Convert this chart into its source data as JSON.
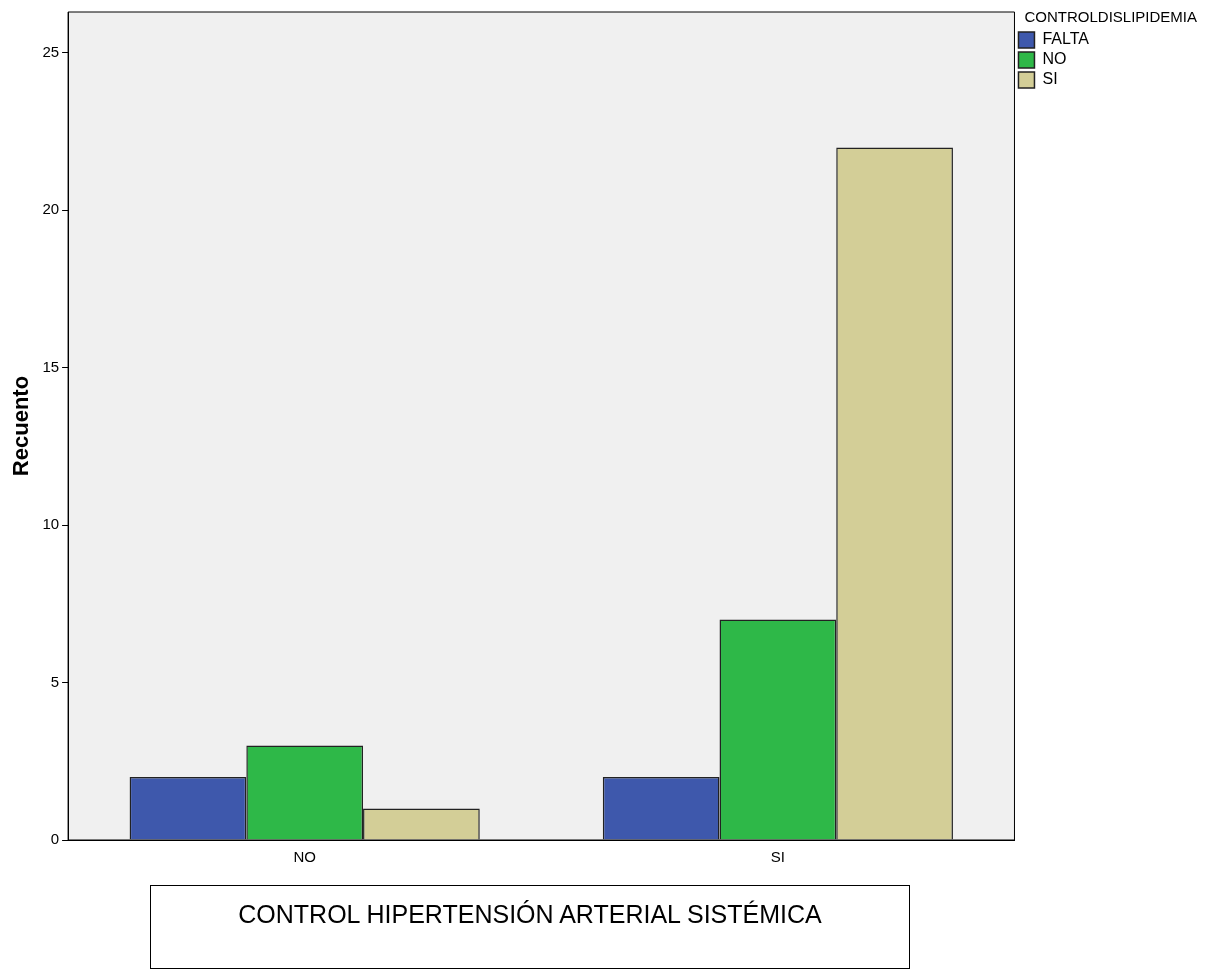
{
  "chart_data": {
    "type": "bar",
    "xlabel": "CONTROL HIPERTENSIÓN ARTERIAL SISTÉMICA",
    "ylabel": "Recuento",
    "legend_title": "CONTROLDISLIPIDEMIA",
    "categories": [
      "NO",
      "SI"
    ],
    "series": [
      {
        "name": "FALTA",
        "color": "#3e58ac",
        "values": [
          2,
          2
        ]
      },
      {
        "name": "NO",
        "color": "#2eb848",
        "values": [
          3,
          7
        ]
      },
      {
        "name": "SI",
        "color": "#d3ce97",
        "values": [
          1,
          22
        ]
      }
    ],
    "ylim": [
      0,
      26.3
    ],
    "yticks": [
      0,
      5,
      10,
      15,
      20,
      25
    ],
    "grid": false,
    "legend": "top right"
  }
}
